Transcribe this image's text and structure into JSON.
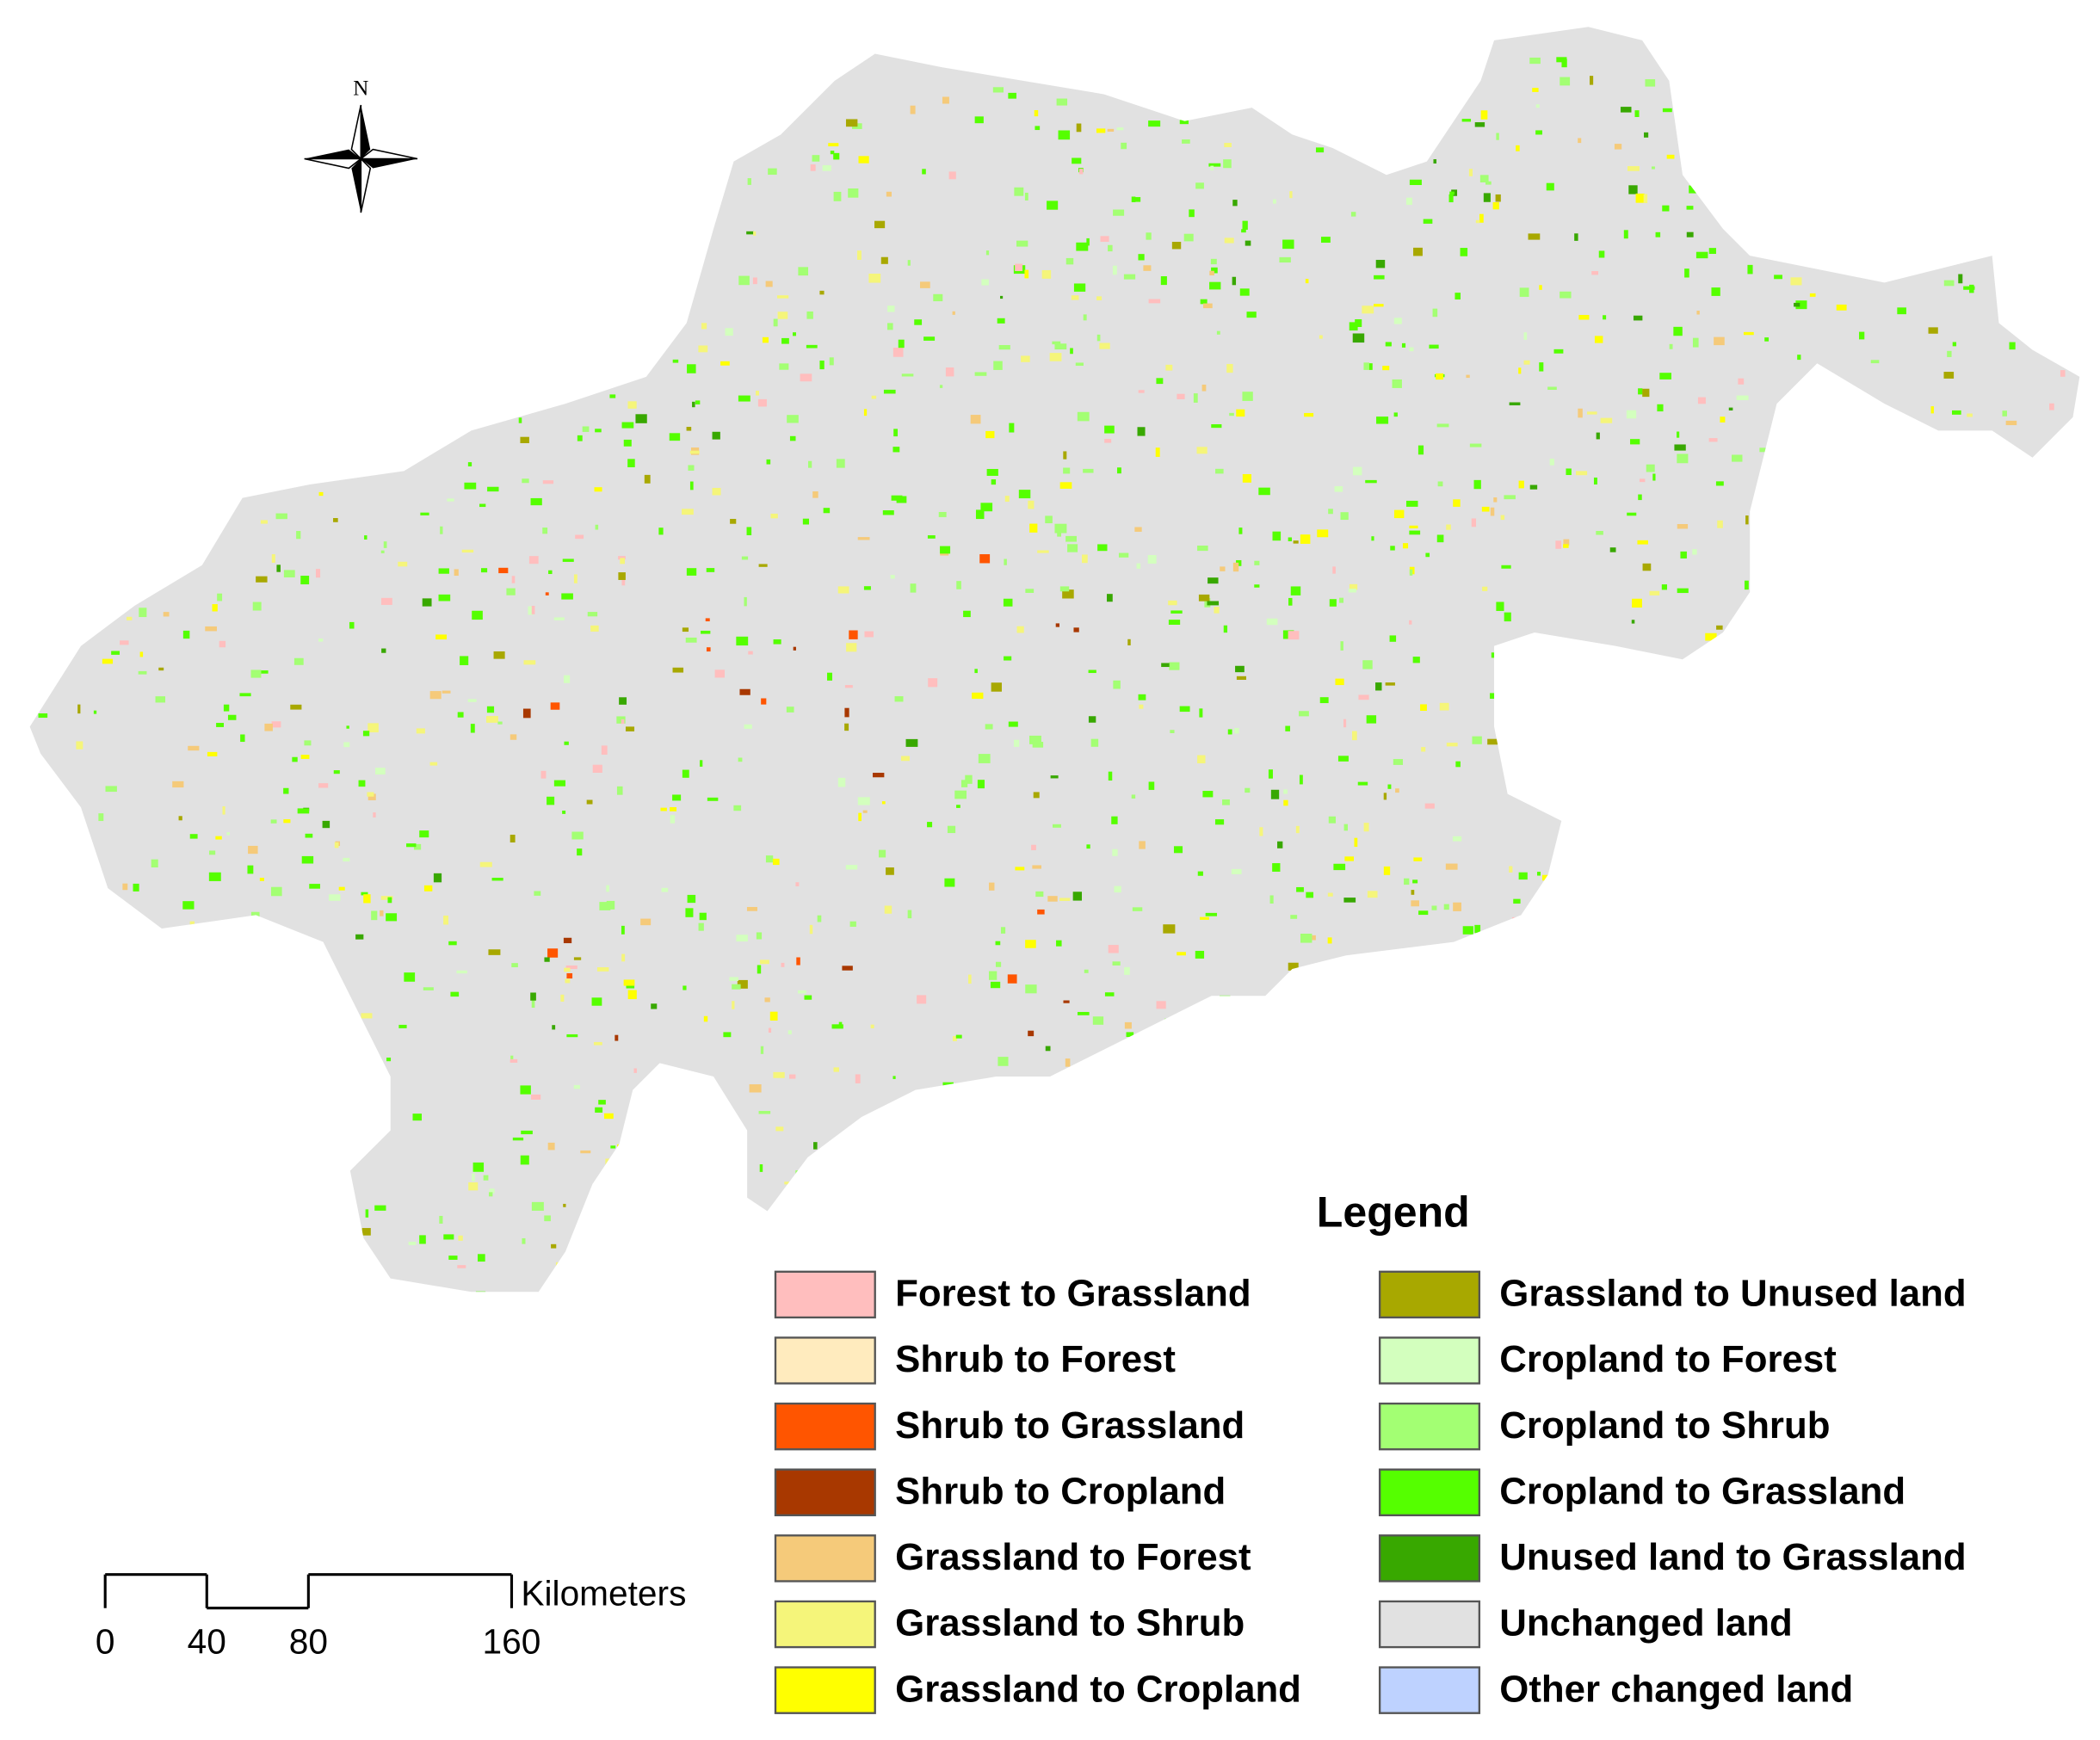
{
  "north_label": "N",
  "legend": {
    "title": "Legend",
    "items": [
      {
        "label": "Forest to Grassland",
        "color": "#ffbebe"
      },
      {
        "label": "Shrub to Forest",
        "color": "#ffebbe"
      },
      {
        "label": "Shrub to Grassland",
        "color": "#ff5500"
      },
      {
        "label": "Shrub to Cropland",
        "color": "#a83800"
      },
      {
        "label": "Grassland to Forest",
        "color": "#f5ca7a"
      },
      {
        "label": "Grassland to Shrub",
        "color": "#f5f57a"
      },
      {
        "label": "Grassland to Cropland",
        "color": "#ffff00"
      },
      {
        "label": "Grassland to Unused land",
        "color": "#a8a800"
      },
      {
        "label": "Cropland to Forest",
        "color": "#d3ffbe"
      },
      {
        "label": "Cropland to Shrub",
        "color": "#a3ff73"
      },
      {
        "label": "Cropland to Grassland",
        "color": "#55ff00"
      },
      {
        "label": "Unused land to Grassland",
        "color": "#38a800"
      },
      {
        "label": "Unchanged land",
        "color": "#e1e1e1"
      },
      {
        "label": "Other changed land",
        "color": "#bed2ff"
      }
    ]
  },
  "scale_bar": {
    "ticks": [
      0,
      40,
      80,
      160
    ],
    "unit": "Kilometers"
  }
}
